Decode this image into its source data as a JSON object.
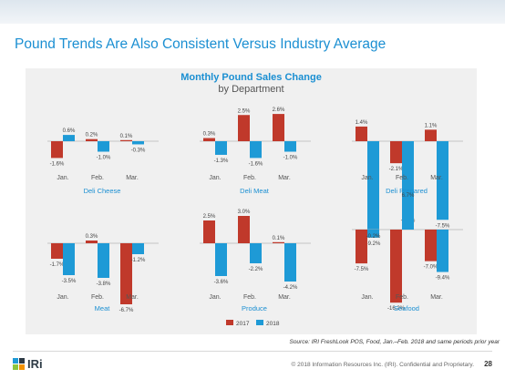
{
  "slide": {
    "title": "Pound Trends Are Also Consistent Versus Industry Average",
    "source": "Source: IRI FreshLook POS, Food, Jan.–Feb. 2018 and same periods prior year",
    "copyright": "© 2018 Information Resources Inc. (IRI). Confidential and Proprietary.",
    "page_number": "28",
    "logo_text": "IRi"
  },
  "colors": {
    "series_2017": "#c0392b",
    "series_2018": "#1e9ad6",
    "accent": "#1b8fd2"
  },
  "chart_data": {
    "type": "bar",
    "title": "Monthly Pound Sales Change",
    "subtitle": "by Department",
    "categories": [
      "Jan.",
      "Feb.",
      "Mar."
    ],
    "series_names": [
      "2017",
      "2018"
    ],
    "legend_position": "bottom",
    "grid": false,
    "panels": [
      {
        "name": "Deli Cheese",
        "ylim": [
          -10,
          10
        ],
        "series": [
          {
            "name": "2017",
            "values": [
              -1.6,
              0.2,
              0.1
            ]
          },
          {
            "name": "2018",
            "values": [
              0.6,
              -1.0,
              -0.3
            ]
          }
        ]
      },
      {
        "name": "Deli Meat",
        "ylim": [
          -10,
          10
        ],
        "series": [
          {
            "name": "2017",
            "values": [
              0.3,
              2.5,
              2.6
            ]
          },
          {
            "name": "2018",
            "values": [
              -1.3,
              -1.6,
              -1.0
            ]
          }
        ]
      },
      {
        "name": "Deli Prepared",
        "ylim": [
          -10,
          10
        ],
        "series": [
          {
            "name": "2017",
            "values": [
              1.4,
              -2.1,
              1.1
            ]
          },
          {
            "name": "2018",
            "values": [
              -9.2,
              -7.0,
              -7.5
            ]
          }
        ]
      },
      {
        "name": "Meat",
        "ylim": [
          -10,
          10
        ],
        "series": [
          {
            "name": "2017",
            "values": [
              -1.7,
              0.3,
              -6.7
            ]
          },
          {
            "name": "2018",
            "values": [
              -3.5,
              -3.8,
              -1.2
            ]
          }
        ]
      },
      {
        "name": "Produce",
        "ylim": [
          -10,
          10
        ],
        "series": [
          {
            "name": "2017",
            "values": [
              2.5,
              3.0,
              0.1
            ]
          },
          {
            "name": "2018",
            "values": [
              -3.6,
              -2.2,
              -4.2
            ]
          }
        ]
      },
      {
        "name": "Seafood",
        "ylim": [
          -17,
          10
        ],
        "series": [
          {
            "name": "2017",
            "values": [
              -7.5,
              -16.2,
              -7.0
            ]
          },
          {
            "name": "2018",
            "values": [
              -0.2,
              6.7,
              -9.4
            ]
          }
        ]
      }
    ]
  }
}
